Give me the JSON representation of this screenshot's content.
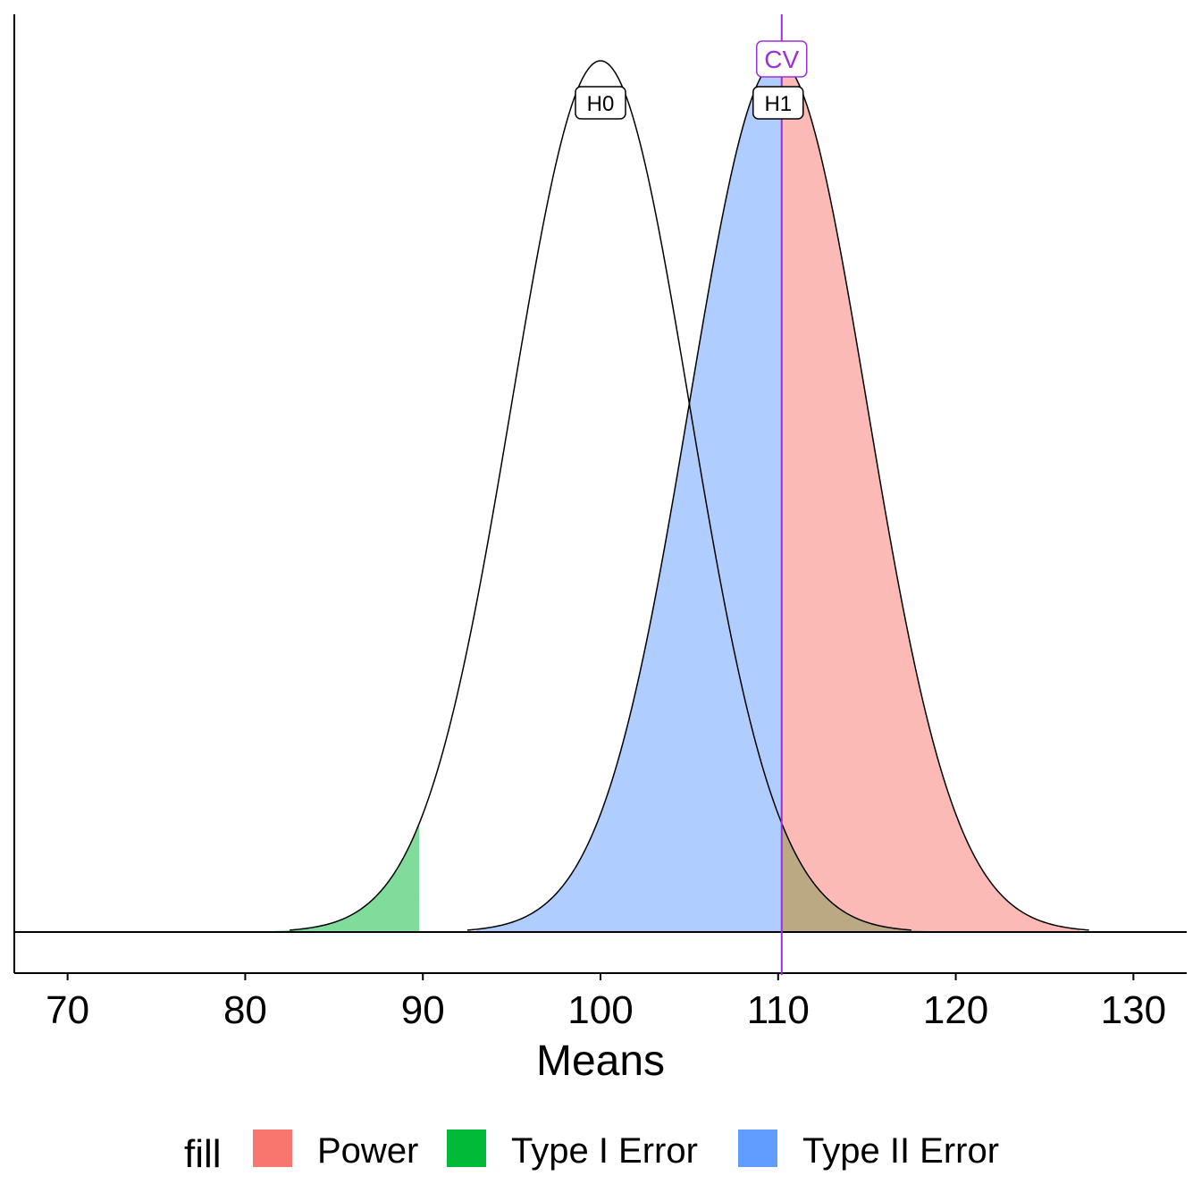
{
  "chart_data": {
    "type": "area",
    "xlabel": "Means",
    "ylabel": "",
    "xlim": [
      67,
      133
    ],
    "x_ticks": [
      "70",
      "80",
      "90",
      "100",
      "110",
      "120",
      "130"
    ],
    "distributions": [
      {
        "label": "H0",
        "mean": 100,
        "sd": 5
      },
      {
        "label": "H1",
        "mean": 110,
        "sd": 5
      }
    ],
    "critical_value": {
      "label": "CV",
      "x": 110.2,
      "color": "#9b30d9"
    },
    "lower_critical_value": 89.8,
    "legend": {
      "title": "fill",
      "position": "bottom",
      "items": [
        {
          "label": "Power",
          "color": "#f8766d"
        },
        {
          "label": "Type I Error",
          "color": "#00ba38"
        },
        {
          "label": "Type II Error",
          "color": "#619cff"
        }
      ]
    },
    "regions": [
      {
        "fill": "Type I Error",
        "distribution": "H0",
        "from": 80,
        "to": 89.8
      },
      {
        "fill": "Type I Error",
        "distribution": "H0",
        "from": 110.2,
        "to": 120
      },
      {
        "fill": "Type II Error",
        "distribution": "H1",
        "from": 93,
        "to": 110.2
      },
      {
        "fill": "Power",
        "distribution": "H1",
        "from": 110.2,
        "to": 127
      }
    ]
  }
}
